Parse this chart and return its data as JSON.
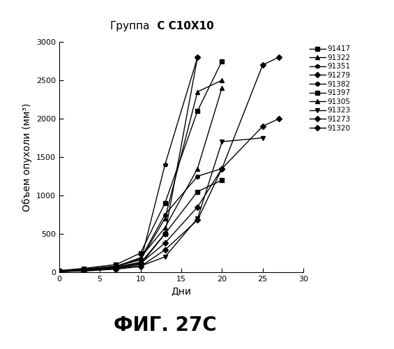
{
  "title_regular": "Группа",
  "title_bold": " C C10X10",
  "xlabel": "Дни",
  "ylabel": "Объем опухоли (мм³)",
  "figure_label": "ФИГ. 27C",
  "xlim": [
    0,
    30
  ],
  "ylim": [
    0,
    3000
  ],
  "xticks": [
    0,
    5,
    10,
    15,
    20,
    25,
    30
  ],
  "yticks": [
    0,
    500,
    1000,
    1500,
    2000,
    2500,
    3000
  ],
  "ytick_labels": [
    "0",
    "500",
    "1000",
    "1500",
    "2000",
    "2500",
    "3000"
  ],
  "series": [
    {
      "label": "91417",
      "marker": "s",
      "days": [
        0,
        3,
        7,
        10,
        13,
        17,
        20
      ],
      "values": [
        20,
        50,
        100,
        250,
        900,
        2100,
        2750
      ]
    },
    {
      "label": "91322",
      "marker": "^",
      "days": [
        0,
        3,
        7,
        10,
        13,
        17,
        20
      ],
      "values": [
        20,
        40,
        80,
        160,
        700,
        2350,
        2500
      ]
    },
    {
      "label": "91351",
      "marker": "p",
      "days": [
        0,
        3,
        7,
        10,
        13,
        17
      ],
      "values": [
        15,
        30,
        70,
        130,
        1400,
        2800
      ]
    },
    {
      "label": "91279",
      "marker": "D",
      "days": [
        0,
        3,
        7,
        10,
        13,
        17
      ],
      "values": [
        10,
        20,
        55,
        120,
        500,
        2800
      ]
    },
    {
      "label": "91382",
      "marker": "o",
      "days": [
        0,
        3,
        7,
        10,
        13,
        17,
        20
      ],
      "values": [
        15,
        30,
        80,
        175,
        750,
        1250,
        1350
      ]
    },
    {
      "label": "91397",
      "marker": "s",
      "days": [
        0,
        3,
        7,
        10,
        13,
        17,
        20
      ],
      "values": [
        10,
        20,
        55,
        100,
        500,
        1050,
        1200
      ]
    },
    {
      "label": "91305",
      "marker": "^",
      "days": [
        0,
        3,
        7,
        10,
        13,
        17,
        20
      ],
      "values": [
        15,
        25,
        75,
        190,
        580,
        1350,
        2400
      ]
    },
    {
      "label": "91323",
      "marker": "v",
      "days": [
        0,
        3,
        7,
        10,
        13,
        17,
        20,
        25
      ],
      "values": [
        10,
        20,
        50,
        80,
        200,
        700,
        1700,
        1750
      ]
    },
    {
      "label": "91273",
      "marker": "D",
      "days": [
        0,
        3,
        7,
        10,
        13,
        17,
        20,
        25,
        27
      ],
      "values": [
        10,
        15,
        40,
        75,
        290,
        680,
        1350,
        2700,
        2800
      ]
    },
    {
      "label": "91320",
      "marker": "D",
      "days": [
        0,
        3,
        7,
        10,
        13,
        17,
        20,
        25,
        27
      ],
      "values": [
        15,
        25,
        60,
        115,
        380,
        850,
        1350,
        1900,
        2000
      ]
    }
  ],
  "marker_styles": [
    "s",
    "^",
    "p",
    "D",
    "o",
    "s",
    "^",
    "v",
    "D",
    "D"
  ],
  "line_color": "black",
  "background_color": "white",
  "title_fontsize": 11,
  "label_fontsize": 10,
  "tick_fontsize": 8,
  "legend_fontsize": 7.5,
  "figure_label_fontsize": 20
}
